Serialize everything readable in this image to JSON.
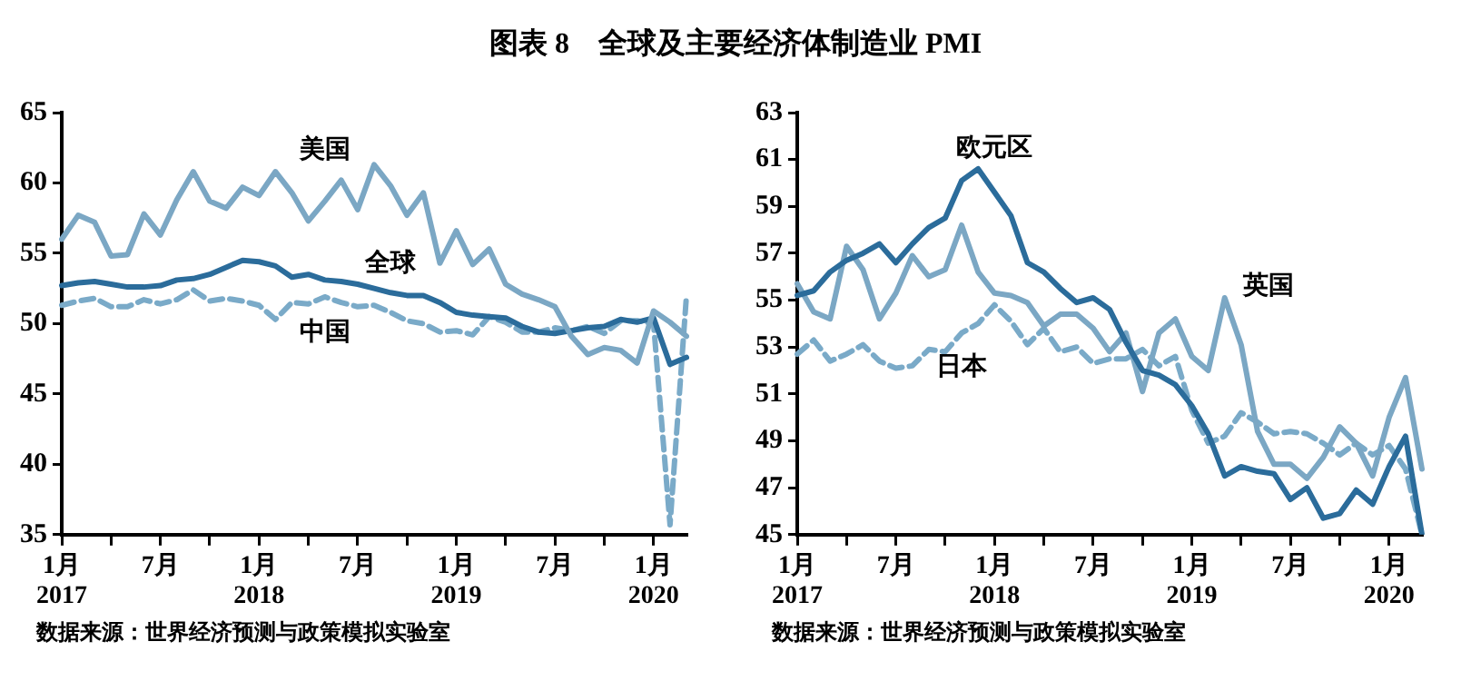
{
  "chart_data": [
    {
      "type": "line",
      "title": "图表 8　全球及主要经济体制造业 PMI",
      "categories": [
        "1月\n2017",
        null,
        null,
        null,
        null,
        null,
        "7月",
        null,
        null,
        null,
        null,
        null,
        "1月\n2018",
        null,
        null,
        null,
        null,
        null,
        "7月",
        null,
        null,
        null,
        null,
        null,
        "1月\n2019",
        null,
        null,
        null,
        null,
        null,
        "7月",
        null,
        null,
        null,
        null,
        null,
        "1月\n2020",
        null,
        null
      ],
      "series": [
        {
          "name": "美国",
          "color": "#7ba7c4",
          "line_style": "solid",
          "values": [
            56.0,
            57.7,
            57.2,
            54.8,
            54.9,
            57.8,
            56.3,
            58.8,
            60.8,
            58.7,
            58.2,
            59.7,
            59.1,
            60.8,
            59.3,
            57.3,
            58.7,
            60.2,
            58.1,
            61.3,
            59.8,
            57.7,
            59.3,
            54.3,
            56.6,
            54.2,
            55.3,
            52.8,
            52.1,
            51.7,
            51.2,
            49.1,
            47.8,
            48.3,
            48.1,
            47.2,
            50.9,
            50.1,
            49.1
          ]
        },
        {
          "name": "全球",
          "color": "#2b6c9b",
          "line_style": "solid",
          "values": [
            52.7,
            52.9,
            53.0,
            52.8,
            52.6,
            52.6,
            52.7,
            53.1,
            53.2,
            53.5,
            54.0,
            54.5,
            54.4,
            54.1,
            53.3,
            53.5,
            53.1,
            53.0,
            52.8,
            52.5,
            52.2,
            52.0,
            52.0,
            51.5,
            50.8,
            50.6,
            50.5,
            50.4,
            49.8,
            49.4,
            49.3,
            49.5,
            49.7,
            49.8,
            50.3,
            50.1,
            50.4,
            47.1,
            47.6
          ]
        },
        {
          "name": "中国",
          "color": "#7aaac8",
          "line_style": "dashed",
          "values": [
            51.3,
            51.6,
            51.8,
            51.2,
            51.2,
            51.7,
            51.4,
            51.7,
            52.4,
            51.6,
            51.8,
            51.6,
            51.3,
            50.3,
            51.5,
            51.4,
            51.9,
            51.5,
            51.2,
            51.3,
            50.8,
            50.2,
            50.0,
            49.4,
            49.5,
            49.2,
            50.5,
            50.1,
            49.4,
            49.4,
            49.7,
            49.5,
            49.8,
            49.3,
            50.2,
            50.2,
            50.0,
            35.7,
            52.0
          ]
        }
      ],
      "ylim": [
        35,
        65
      ],
      "yticks": [
        35,
        40,
        45,
        50,
        55,
        60,
        65
      ],
      "grid": false,
      "legend": false,
      "marker": "none",
      "annotations": [
        "数据来源：世界经济预测与政策模拟实验室"
      ]
    },
    {
      "type": "line",
      "categories": [
        "1月\n2017",
        null,
        null,
        null,
        null,
        null,
        "7月",
        null,
        null,
        null,
        null,
        null,
        "1月\n2018",
        null,
        null,
        null,
        null,
        null,
        "7月",
        null,
        null,
        null,
        null,
        null,
        "1月\n2019",
        null,
        null,
        null,
        null,
        null,
        "7月",
        null,
        null,
        null,
        null,
        null,
        "1月\n2020",
        null,
        null
      ],
      "series": [
        {
          "name": "欧元区",
          "color": "#2b6c9b",
          "line_style": "solid",
          "values": [
            55.2,
            55.4,
            56.2,
            56.7,
            57.0,
            57.4,
            56.6,
            57.4,
            58.1,
            58.5,
            60.1,
            60.6,
            59.6,
            58.6,
            56.6,
            56.2,
            55.5,
            54.9,
            55.1,
            54.6,
            53.2,
            52.0,
            51.8,
            51.4,
            50.5,
            49.3,
            47.5,
            47.9,
            47.7,
            47.6,
            46.5,
            47.0,
            45.7,
            45.9,
            46.9,
            46.3,
            47.9,
            49.2,
            45.0
          ]
        },
        {
          "name": "英国",
          "color": "#7ba7c4",
          "line_style": "solid",
          "values": [
            55.7,
            54.5,
            54.2,
            57.3,
            56.3,
            54.2,
            55.3,
            56.9,
            56.0,
            56.3,
            58.2,
            56.2,
            55.3,
            55.2,
            54.9,
            53.9,
            54.4,
            54.4,
            53.8,
            52.8,
            53.6,
            51.1,
            53.6,
            54.2,
            52.6,
            52.0,
            55.1,
            53.1,
            49.4,
            48.0,
            48.0,
            47.4,
            48.3,
            49.6,
            48.9,
            47.5,
            50.0,
            51.7,
            47.8
          ]
        },
        {
          "name": "日本",
          "color": "#7aaac8",
          "line_style": "dashed",
          "values": [
            52.7,
            53.3,
            52.4,
            52.7,
            53.1,
            52.4,
            52.1,
            52.2,
            52.9,
            52.8,
            53.6,
            54.0,
            54.8,
            54.1,
            53.1,
            53.8,
            52.8,
            53.0,
            52.3,
            52.5,
            52.5,
            52.9,
            52.2,
            52.6,
            50.3,
            48.9,
            49.2,
            50.2,
            49.8,
            49.3,
            49.4,
            49.3,
            48.9,
            48.4,
            48.9,
            48.4,
            48.8,
            47.8,
            45.0
          ]
        }
      ],
      "ylim": [
        45,
        63
      ],
      "yticks": [
        45,
        47,
        49,
        51,
        53,
        55,
        57,
        59,
        61,
        63
      ],
      "grid": false,
      "legend": false,
      "marker": "none",
      "annotations": [
        "数据来源：世界经济预测与政策模拟实验室"
      ]
    }
  ]
}
